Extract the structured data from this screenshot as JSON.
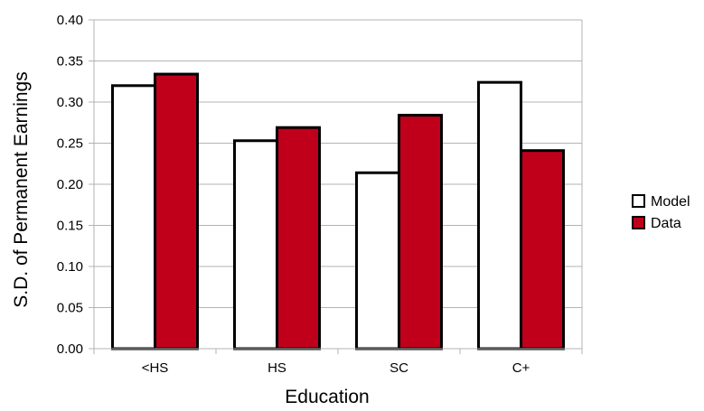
{
  "chart_data": {
    "type": "bar",
    "categories": [
      "<HS",
      "HS",
      "SC",
      "C+"
    ],
    "series": [
      {
        "name": "Model",
        "values": [
          0.32,
          0.253,
          0.214,
          0.324
        ],
        "color": "#ffffff"
      },
      {
        "name": "Data",
        "values": [
          0.334,
          0.269,
          0.284,
          0.241
        ],
        "color": "#c0001a"
      }
    ],
    "xlabel": "Education",
    "ylabel": "S.D. of Permanent Earnings",
    "ylim": [
      0,
      0.4
    ],
    "yticks": [
      "0.00",
      "0.05",
      "0.10",
      "0.15",
      "0.20",
      "0.25",
      "0.30",
      "0.35",
      "0.40"
    ],
    "grid": true,
    "legend_position": "right"
  }
}
